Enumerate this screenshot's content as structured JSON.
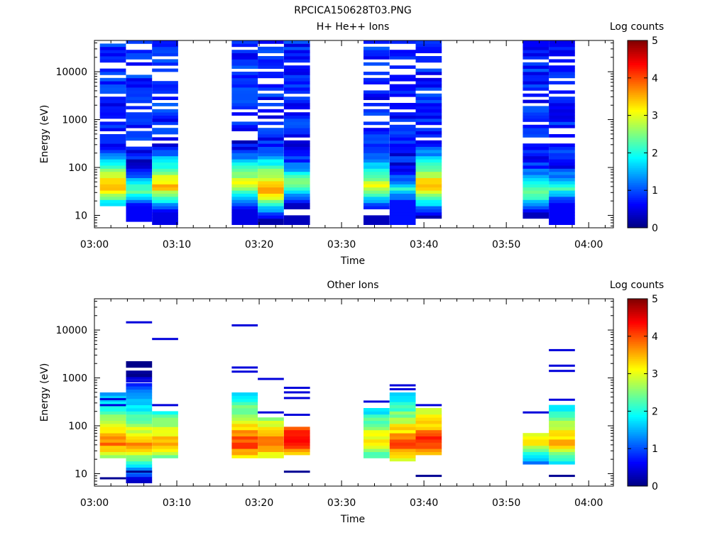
{
  "figure_title": "RPCICA150628T03.PNG",
  "colormap": [
    "#00007f",
    "#0000ff",
    "#007fff",
    "#00ffff",
    "#7fff7f",
    "#ffff00",
    "#ff7f00",
    "#ff0000",
    "#7f0000"
  ],
  "chart_data": [
    {
      "type": "heatmap",
      "title": "H+ He++ Ions",
      "xlabel": "Time",
      "ylabel": "Energy (eV)",
      "yscale": "log",
      "xlim": [
        "03:00",
        "04:03"
      ],
      "ylim": [
        5.5,
        45000
      ],
      "x_ticks": [
        "03:00",
        "03:10",
        "03:20",
        "03:30",
        "03:40",
        "03:50",
        "04:00"
      ],
      "y_ticks": [
        {
          "value": 10,
          "label": "10"
        },
        {
          "value": 100,
          "label": "100"
        },
        {
          "value": 1000,
          "label": "1000"
        },
        {
          "value": 10000,
          "label": "10000"
        }
      ],
      "colorbar": {
        "label": "Log counts",
        "range": [
          0,
          5
        ],
        "ticks": [
          "0",
          "1",
          "2",
          "3",
          "4",
          "5"
        ]
      },
      "grid": false,
      "columns": [
        {
          "start": "03:00:40",
          "end": "03:03:50",
          "emin": 15,
          "emax": 36000,
          "peak_energy": 40,
          "peak_value": 3.6,
          "gap_energy": 11,
          "bottom_value": 0.2
        },
        {
          "start": "03:03:50",
          "end": "03:07:00",
          "emin": 8,
          "emax": 42000,
          "peak_energy": 32,
          "peak_value": 2.3,
          "gap_energy": 0,
          "bottom_value": 0.6
        },
        {
          "start": "03:07:00",
          "end": "03:10:10",
          "emin": 6,
          "emax": 42000,
          "peak_energy": 40,
          "peak_value": 3.5,
          "gap_energy": 0,
          "bottom_value": 0.5
        },
        {
          "start": "03:16:40",
          "end": "03:19:50",
          "emin": 6,
          "emax": 42000,
          "peak_energy": 45,
          "peak_value": 3.2,
          "gap_energy": 0,
          "bottom_value": 0.5
        },
        {
          "start": "03:19:50",
          "end": "03:23:00",
          "emin": 6,
          "emax": 42000,
          "peak_energy": 35,
          "peak_value": 3.8,
          "gap_energy": 0,
          "bottom_value": 0.2
        },
        {
          "start": "03:23:00",
          "end": "03:26:10",
          "emin": 6,
          "emax": 42000,
          "peak_energy": 45,
          "peak_value": 2.6,
          "gap_energy": 11,
          "bottom_value": 0.3
        },
        {
          "start": "03:32:40",
          "end": "03:35:50",
          "emin": 6,
          "emax": 42000,
          "peak_energy": 42,
          "peak_value": 3.1,
          "gap_energy": 11,
          "bottom_value": 0.3
        },
        {
          "start": "03:35:50",
          "end": "03:39:00",
          "emin": 6,
          "emax": 42000,
          "peak_energy": 34,
          "peak_value": 2.0,
          "gap_energy": 0,
          "bottom_value": 0.7
        },
        {
          "start": "03:39:00",
          "end": "03:42:10",
          "emin": 9,
          "emax": 42000,
          "peak_energy": 40,
          "peak_value": 3.7,
          "gap_energy": 0,
          "bottom_value": 0.2
        },
        {
          "start": "03:52:00",
          "end": "03:55:10",
          "emin": 9,
          "emax": 42000,
          "peak_energy": 30,
          "peak_value": 2.7,
          "gap_energy": 0,
          "bottom_value": 0.3
        },
        {
          "start": "03:55:10",
          "end": "03:58:20",
          "emin": 6,
          "emax": 42000,
          "peak_energy": 36,
          "peak_value": 2.2,
          "gap_energy": 0,
          "bottom_value": 0.6
        }
      ]
    },
    {
      "type": "heatmap",
      "title": "Other Ions",
      "xlabel": "Time",
      "ylabel": "Energy (eV)",
      "yscale": "log",
      "xlim": [
        "03:00",
        "04:03"
      ],
      "ylim": [
        5.5,
        45000
      ],
      "x_ticks": [
        "03:00",
        "03:10",
        "03:20",
        "03:30",
        "03:40",
        "03:50",
        "04:00"
      ],
      "y_ticks": [
        {
          "value": 10,
          "label": "10"
        },
        {
          "value": 100,
          "label": "100"
        },
        {
          "value": 1000,
          "label": "1000"
        },
        {
          "value": 10000,
          "label": "10000"
        }
      ],
      "colorbar": {
        "label": "Log counts",
        "range": [
          0,
          5
        ],
        "ticks": [
          "0",
          "1",
          "2",
          "3",
          "4",
          "5"
        ]
      },
      "grid": false,
      "columns": [
        {
          "start": "03:00:40",
          "end": "03:03:50",
          "emin": 20,
          "emax": 520,
          "peak_energy": 42,
          "peak_value": 3.8,
          "lines": [
            8,
            360,
            270
          ]
        },
        {
          "start": "03:03:50",
          "end": "03:07:00",
          "emin": 6,
          "emax": 2200,
          "peak_energy": 40,
          "peak_value": 3.7,
          "lines": [
            14500,
            850,
            11
          ]
        },
        {
          "start": "03:07:00",
          "end": "03:10:10",
          "emin": 20,
          "emax": 210,
          "peak_energy": 42,
          "peak_value": 3.6,
          "lines": [
            6500,
            270
          ]
        },
        {
          "start": "03:16:40",
          "end": "03:19:50",
          "emin": 20,
          "emax": 480,
          "peak_energy": 40,
          "peak_value": 4.2,
          "lines": [
            12500,
            1650,
            1350
          ]
        },
        {
          "start": "03:19:50",
          "end": "03:23:00",
          "emin": 20,
          "emax": 140,
          "peak_energy": 42,
          "peak_value": 4.0,
          "lines": [
            950,
            190
          ]
        },
        {
          "start": "03:23:00",
          "end": "03:26:10",
          "emin": 25,
          "emax": 90,
          "peak_energy": 50,
          "peak_value": 4.6,
          "lines": [
            620,
            500,
            380,
            170,
            11
          ]
        },
        {
          "start": "03:32:40",
          "end": "03:35:50",
          "emin": 20,
          "emax": 220,
          "peak_energy": 45,
          "peak_value": 3.4,
          "lines": [
            320
          ]
        },
        {
          "start": "03:35:50",
          "end": "03:39:00",
          "emin": 17,
          "emax": 600,
          "peak_energy": 38,
          "peak_value": 4.1,
          "lines": [
            700,
            580
          ]
        },
        {
          "start": "03:39:00",
          "end": "03:42:10",
          "emin": 25,
          "emax": 220,
          "peak_energy": 45,
          "peak_value": 4.3,
          "lines": [
            270,
            9
          ]
        },
        {
          "start": "03:52:00",
          "end": "03:55:10",
          "emin": 16,
          "emax": 70,
          "peak_energy": 45,
          "peak_value": 3.2,
          "lines": [
            190
          ]
        },
        {
          "start": "03:55:10",
          "end": "03:58:20",
          "emin": 16,
          "emax": 260,
          "peak_energy": 45,
          "peak_value": 3.6,
          "lines": [
            3800,
            1800,
            1400,
            350,
            9
          ]
        }
      ]
    }
  ]
}
